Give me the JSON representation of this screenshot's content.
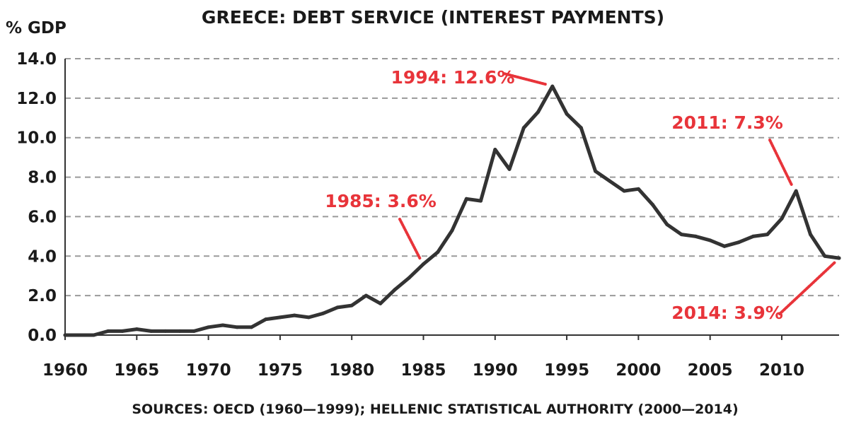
{
  "chart_data": {
    "type": "line",
    "title": "GREECE: DEBT SERVICE (INTEREST PAYMENTS)",
    "ylabel": "% GDP",
    "xlabel": "",
    "source": "SOURCES: OECD (1960—1999); HELLENIC STATISTICAL AUTHORITY (2000—2014)",
    "xlim": [
      1960,
      2014
    ],
    "ylim": [
      0,
      14
    ],
    "grid": true,
    "xticks": [
      "1960",
      "1965",
      "1970",
      "1975",
      "1980",
      "1985",
      "1990",
      "1995",
      "2000",
      "2005",
      "2010"
    ],
    "yticks": [
      "0.0",
      "2.0",
      "4.0",
      "6.0",
      "8.0",
      "10.0",
      "12.0",
      "14.0"
    ],
    "series": [
      {
        "x": [
          1960,
          1961,
          1962,
          1963,
          1964,
          1965,
          1966,
          1967,
          1968,
          1969,
          1970,
          1971,
          1972,
          1973,
          1974,
          1975,
          1976,
          1977,
          1978,
          1979,
          1980,
          1981,
          1982,
          1983,
          1984,
          1985,
          1986,
          1987,
          1988,
          1989,
          1990,
          1991,
          1992,
          1993,
          1994,
          1995,
          1996,
          1997,
          1998,
          1999,
          2000,
          2001,
          2002,
          2003,
          2004,
          2005,
          2006,
          2007,
          2008,
          2009,
          2010,
          2011,
          2012,
          2013,
          2014
        ],
        "values": [
          0.0,
          0.0,
          0.0,
          0.2,
          0.2,
          0.3,
          0.2,
          0.2,
          0.2,
          0.2,
          0.4,
          0.5,
          0.4,
          0.4,
          0.8,
          0.9,
          1.0,
          0.9,
          1.1,
          1.4,
          1.5,
          2.0,
          1.6,
          2.3,
          2.9,
          3.6,
          4.2,
          5.3,
          6.9,
          6.8,
          9.4,
          8.4,
          10.5,
          11.3,
          12.6,
          11.2,
          10.5,
          8.3,
          7.8,
          7.3,
          7.4,
          6.6,
          5.6,
          5.1,
          5.0,
          4.8,
          4.5,
          4.7,
          5.0,
          5.1,
          5.9,
          7.3,
          5.1,
          4.0,
          3.9
        ],
        "color": "#333333"
      }
    ],
    "annotations": [
      {
        "text": "1994: 12.6%",
        "x": 1994,
        "y": 12.6,
        "color": "#e8343a"
      },
      {
        "text": "1985: 3.6%",
        "x": 1985,
        "y": 3.6,
        "color": "#e8343a"
      },
      {
        "text": "2011: 7.3%",
        "x": 2011,
        "y": 7.3,
        "color": "#e8343a"
      },
      {
        "text": "2014: 3.9%",
        "x": 2014,
        "y": 3.9,
        "color": "#e8343a"
      }
    ]
  }
}
